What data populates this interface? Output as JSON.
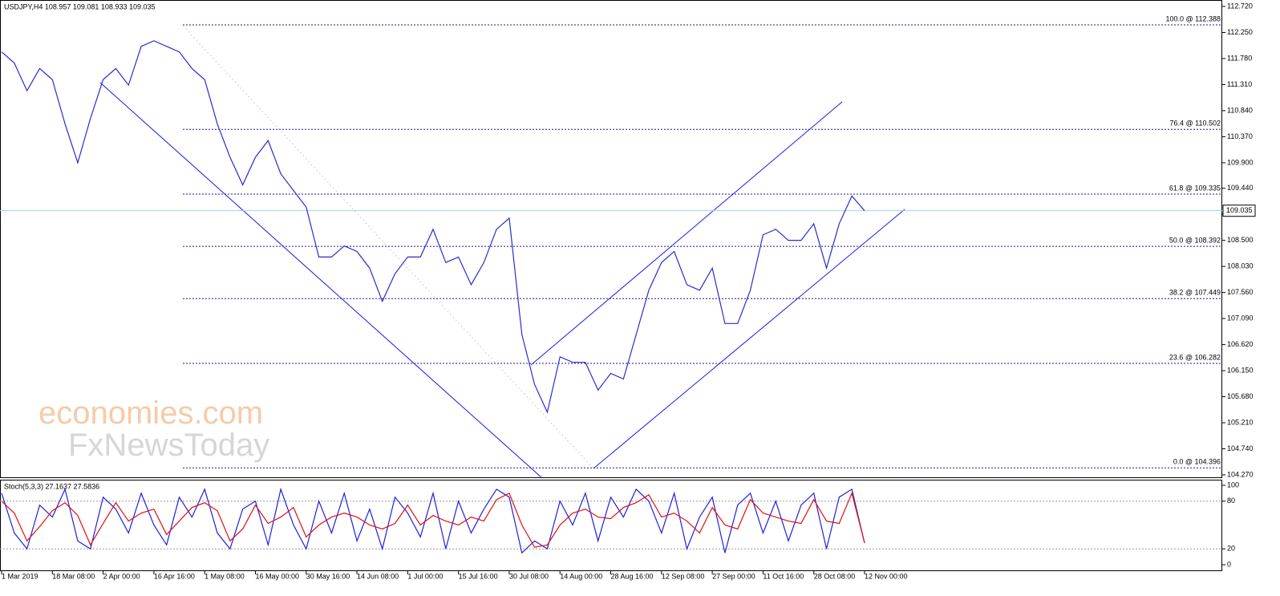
{
  "chart_data": [
    {
      "type": "line",
      "title": "USDJPY,H4  108.957 109.081 108.933 109.035",
      "xlim": [
        0,
        68
      ],
      "xticks": [
        {
          "value": 0,
          "label": "1 Mar 2019"
        },
        {
          "value": 4,
          "label": "18 Mar 08:00"
        },
        {
          "value": 8,
          "label": "2 Apr 00:00"
        },
        {
          "value": 12,
          "label": "16 Apr 16:00"
        },
        {
          "value": 16,
          "label": "1 May 08:00"
        },
        {
          "value": 20,
          "label": "16 May 00:00"
        },
        {
          "value": 24,
          "label": "30 May 16:00"
        },
        {
          "value": 28,
          "label": "14 Jun 08:00"
        },
        {
          "value": 32,
          "label": "1 Jul 00:00"
        },
        {
          "value": 36,
          "label": "15 Jul 16:00"
        },
        {
          "value": 40,
          "label": "30 Jul 08:00"
        },
        {
          "value": 44,
          "label": "14 Aug 00:00"
        },
        {
          "value": 48,
          "label": "28 Aug 16:00"
        },
        {
          "value": 52,
          "label": "12 Sep 08:00"
        },
        {
          "value": 56,
          "label": "27 Sep 00:00"
        },
        {
          "value": 60,
          "label": "11 Oct 16:00"
        },
        {
          "value": 64,
          "label": "28 Oct 08:00"
        },
        {
          "value": 68,
          "label": "12 Nov 00:00"
        }
      ],
      "series": [
        {
          "color": "#2b2bd0",
          "values": [
            111.9,
            111.7,
            111.2,
            111.6,
            111.4,
            110.6,
            109.9,
            110.7,
            111.4,
            111.6,
            111.3,
            112.0,
            112.1,
            112.0,
            111.9,
            111.6,
            111.4,
            110.6,
            110.0,
            109.5,
            110.0,
            110.3,
            109.7,
            109.4,
            109.1,
            108.2,
            108.2,
            108.4,
            108.3,
            108.0,
            107.4,
            107.9,
            108.2,
            108.2,
            108.7,
            108.1,
            108.2,
            107.7,
            108.1,
            108.7,
            108.9,
            106.8,
            105.9,
            105.4,
            106.4,
            106.3,
            106.3,
            105.8,
            106.1,
            106.0,
            106.8,
            107.6,
            108.1,
            108.3,
            107.7,
            107.6,
            108.0,
            107.0,
            107.0,
            107.6,
            108.6,
            108.7,
            108.5,
            108.5,
            108.8,
            108.0,
            108.8,
            109.3,
            109.035
          ]
        }
      ],
      "ylim": [
        104.212,
        112.836
      ],
      "yticks": [
        {
          "value": 112.72,
          "label": "112.720"
        },
        {
          "value": 112.25,
          "label": "112.250"
        },
        {
          "value": 111.78,
          "label": "111.780"
        },
        {
          "value": 111.31,
          "label": "111.310"
        },
        {
          "value": 110.84,
          "label": "110.840"
        },
        {
          "value": 110.37,
          "label": "110.370"
        },
        {
          "value": 109.9,
          "label": "109.900"
        },
        {
          "value": 109.44,
          "label": "109.440"
        },
        {
          "value": 108.97,
          "label": "108.970"
        },
        {
          "value": 108.5,
          "label": "108.500"
        },
        {
          "value": 108.03,
          "label": "108.030"
        },
        {
          "value": 107.56,
          "label": "107.560"
        },
        {
          "value": 107.09,
          "label": "107.090"
        },
        {
          "value": 106.62,
          "label": "106.620"
        },
        {
          "value": 106.15,
          "label": "106.150"
        },
        {
          "value": 105.68,
          "label": "105.680"
        },
        {
          "value": 105.21,
          "label": "105.210"
        },
        {
          "value": 104.74,
          "label": "104.740"
        },
        {
          "value": 104.27,
          "label": "104.270"
        }
      ],
      "levels": [
        {
          "value": 112.388,
          "label": "100.0 @ 112.388"
        },
        {
          "value": 110.502,
          "label": "76.4 @ 110.502"
        },
        {
          "value": 109.335,
          "label": "61.8 @ 109.335"
        },
        {
          "value": 108.392,
          "label": "50.0 @ 108.392"
        },
        {
          "value": 107.449,
          "label": "38.2 @ 107.449"
        },
        {
          "value": 106.282,
          "label": "23.6 @ 106.282"
        },
        {
          "value": 104.396,
          "label": "0.0 @ 104.396"
        }
      ],
      "current_price": {
        "value": 109.035,
        "label": "109.035"
      },
      "watermark": [
        "economies.com",
        "FxNewsToday"
      ]
    },
    {
      "type": "line",
      "title": "Stoch(5,3,3) 27.1637 27.5836",
      "xlim": [
        0,
        68
      ],
      "series": [
        {
          "color": "#2020e0",
          "values": [
            90,
            40,
            20,
            75,
            60,
            95,
            30,
            20,
            85,
            70,
            40,
            90,
            50,
            25,
            85,
            60,
            95,
            40,
            20,
            70,
            80,
            25,
            95,
            50,
            20,
            80,
            40,
            90,
            30,
            70,
            20,
            85,
            65,
            35,
            90,
            20,
            80,
            40,
            70,
            95,
            85,
            15,
            30,
            20,
            80,
            50,
            90,
            30,
            85,
            60,
            95,
            80,
            40,
            90,
            20,
            60,
            85,
            15,
            75,
            90,
            40,
            80,
            30,
            75,
            90,
            20,
            85,
            95,
            27.1637
          ]
        },
        {
          "color": "#e01010",
          "values": [
            80,
            65,
            30,
            48,
            68,
            78,
            62,
            25,
            52,
            78,
            55,
            65,
            70,
            38,
            55,
            72,
            78,
            68,
            30,
            45,
            75,
            52,
            60,
            72,
            35,
            50,
            60,
            65,
            60,
            50,
            45,
            52,
            75,
            50,
            62,
            55,
            50,
            60,
            55,
            82,
            90,
            50,
            22,
            25,
            50,
            65,
            70,
            60,
            58,
            72,
            78,
            88,
            60,
            65,
            55,
            40,
            72,
            50,
            45,
            82,
            65,
            60,
            55,
            52,
            82,
            55,
            52,
            90,
            27.5836
          ]
        }
      ],
      "ylim": [
        -8,
        107
      ],
      "yticks": [
        0,
        20,
        80,
        100
      ],
      "levels": [
        20,
        80
      ]
    }
  ]
}
